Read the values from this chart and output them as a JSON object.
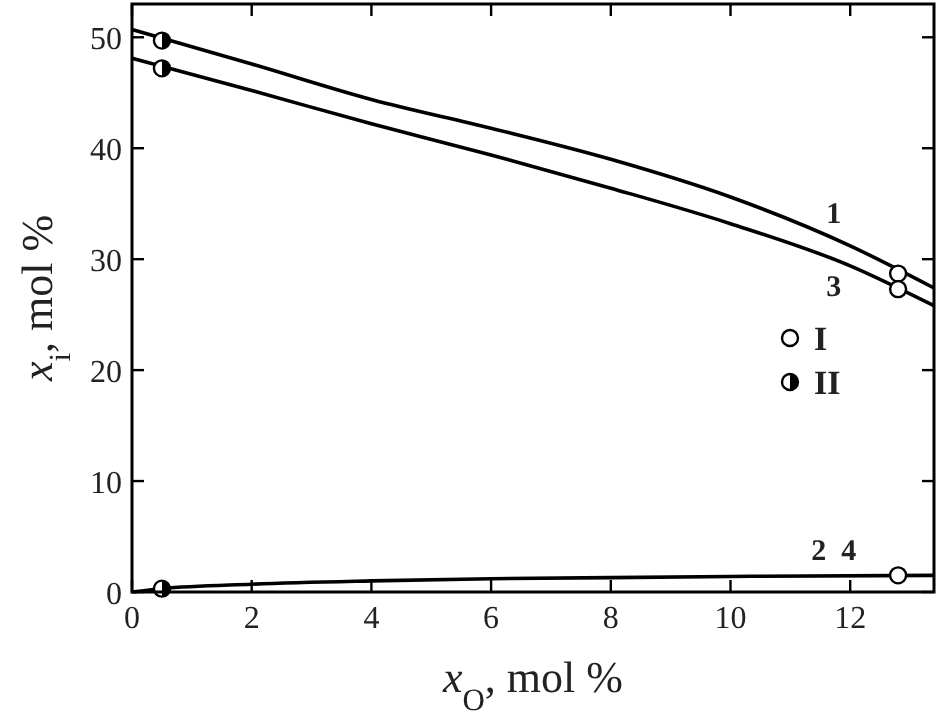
{
  "chart_data": {
    "type": "line",
    "xlabel": "x$_{O}$, mol %",
    "ylabel": "x$_{i}$, mol %",
    "xlim": [
      0,
      13.4
    ],
    "ylim": [
      0,
      53
    ],
    "xticks": [
      0,
      2,
      4,
      6,
      8,
      10,
      12
    ],
    "yticks": [
      0,
      10,
      20,
      30,
      40,
      50
    ],
    "grid": false,
    "legend": "right",
    "line_style": "solid",
    "series": [
      {
        "name": "1",
        "color": "#000000",
        "x": [
          0,
          2,
          4,
          6,
          8,
          10,
          12,
          13.4
        ],
        "values": [
          50.7,
          47.6,
          44.4,
          41.8,
          39.0,
          35.6,
          31.2,
          27.4
        ]
      },
      {
        "name": "2  4",
        "color": "#000000",
        "x": [
          0,
          0.5,
          2,
          4,
          6,
          8,
          10,
          13.4
        ],
        "values": [
          0,
          0.3,
          0.7,
          1.0,
          1.2,
          1.3,
          1.4,
          1.5
        ]
      },
      {
        "name": "3",
        "color": "#000000",
        "x": [
          0,
          2,
          4,
          6,
          8,
          10,
          12,
          13.4
        ],
        "values": [
          48.1,
          45.2,
          42.2,
          39.4,
          36.4,
          33.2,
          29.4,
          25.8
        ]
      },
      {
        "type": "scatter",
        "name": "I",
        "color": "#ffffff",
        "marker": "circle",
        "x": [
          12.8,
          12.8,
          12.8
        ],
        "values": [
          28.7,
          27.3,
          1.5
        ]
      },
      {
        "type": "scatter",
        "name": "II",
        "color": "#000000",
        "marker": "circle",
        "x": [
          0.5,
          0.5,
          0.5
        ],
        "values": [
          49.7,
          47.2,
          0.3
        ]
      }
    ]
  }
}
